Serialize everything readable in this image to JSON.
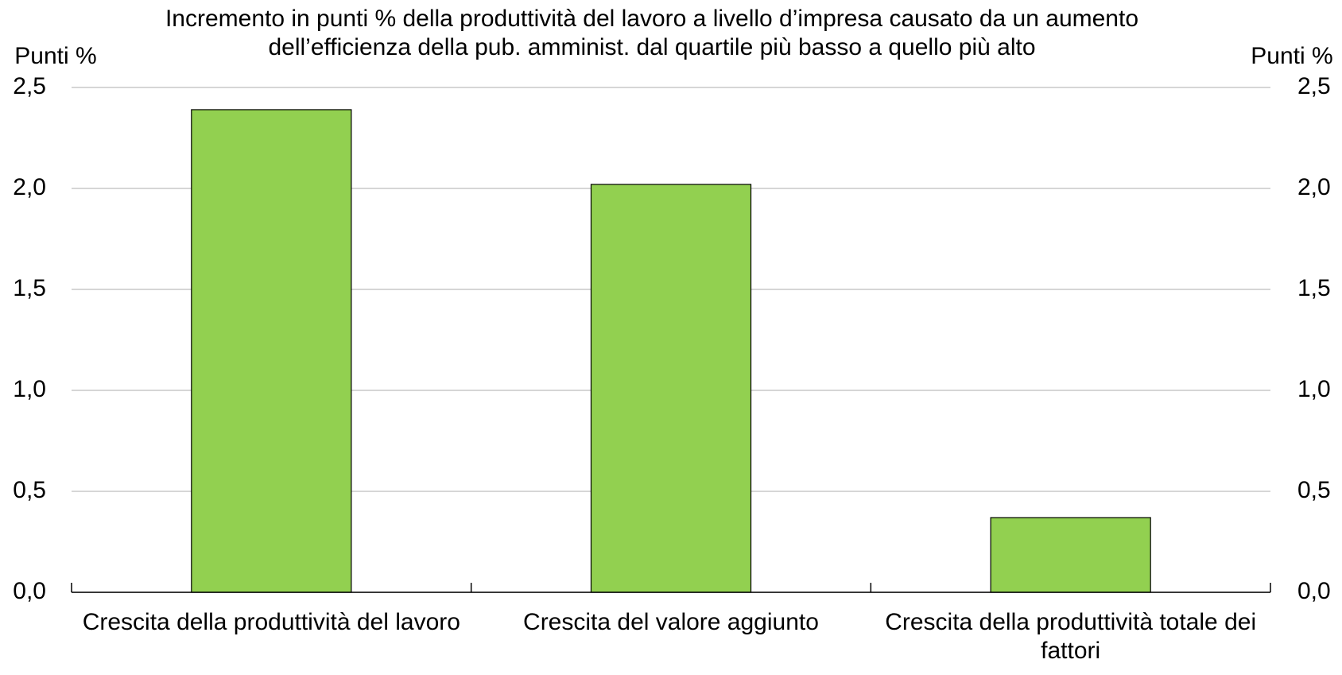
{
  "chart_data": {
    "type": "bar",
    "title": "Incremento in punti % della produttività del lavoro a livello d’impresa causato da un aumento dell’efficienza della pub. amminist. dal quartile più basso a quello più alto",
    "y_label": "Punti %",
    "y2_label": "Punti %",
    "categories": [
      "Crescita della produttività del lavoro",
      "Crescita del valore aggiunto",
      "Crescita della produttività totale dei fattori"
    ],
    "values": [
      2.39,
      2.02,
      0.37
    ],
    "color": "#92d050",
    "ylim": [
      0,
      2.5
    ],
    "yticks": [
      {
        "value": 0,
        "label": "0,0"
      },
      {
        "value": 0.5,
        "label": "0,5"
      },
      {
        "value": 1,
        "label": "1,0"
      },
      {
        "value": 1.5,
        "label": "1,5"
      },
      {
        "value": 2,
        "label": "2,0"
      },
      {
        "value": 2.5,
        "label": "2,5"
      }
    ],
    "y2lim": [
      0,
      2.5
    ],
    "y2ticks": [
      {
        "value": 0,
        "label": "0,0"
      },
      {
        "value": 0.5,
        "label": "0,5"
      },
      {
        "value": 1,
        "label": "1,0"
      },
      {
        "value": 1.5,
        "label": "1,5"
      },
      {
        "value": 2,
        "label": "2,0"
      },
      {
        "value": 2.5,
        "label": "2,5"
      }
    ],
    "grid": true
  }
}
